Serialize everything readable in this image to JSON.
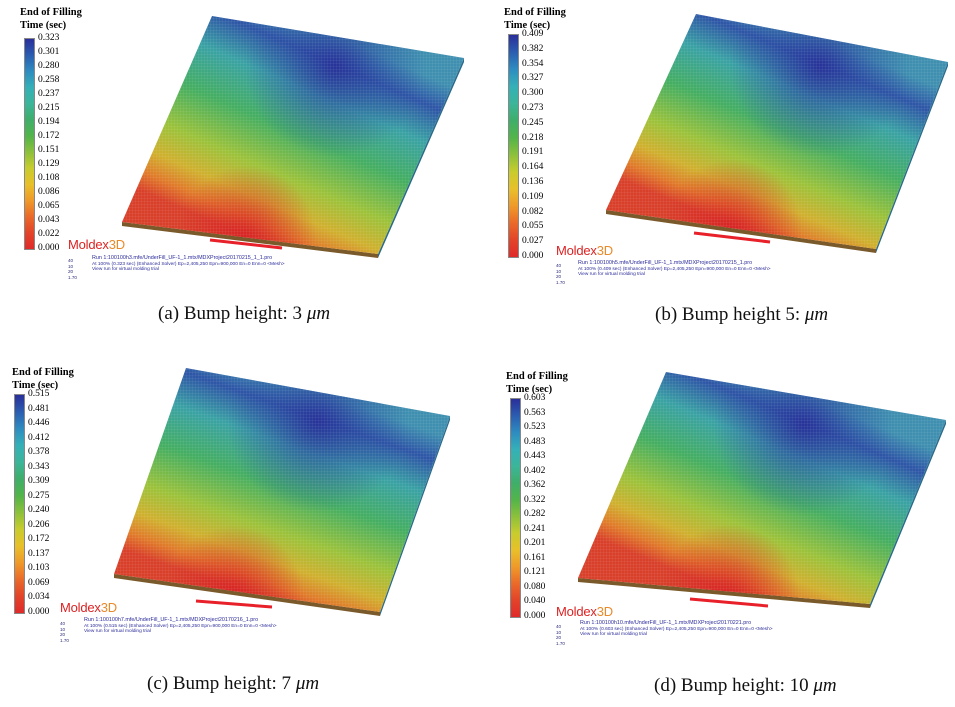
{
  "panels": [
    {
      "legend_title_1": "End of Filling",
      "legend_title_2": "Time (sec)",
      "ticks": [
        "0.323",
        "0.301",
        "0.280",
        "0.258",
        "0.237",
        "0.215",
        "0.194",
        "0.172",
        "0.151",
        "0.129",
        "0.108",
        "0.086",
        "0.065",
        "0.043",
        "0.022",
        "0.000"
      ],
      "logo_main": "Moldex",
      "logo_suffix": "3D",
      "meta_nums": [
        "40",
        "10",
        "20",
        "1.70"
      ],
      "run_line": "Run 1:100100h3.mfe/UnderFill_UF-1_1.mtx/MDXProject20170215_1_1.pro",
      "info_line": "At 100% (0.323 sec) (Enhanced Solver) Ep=2,405,250 Epn=900,000 En=0 Enn=0 <Mesh>",
      "note_line": "View run for virtual molding trial",
      "caption_prefix": "(a) Bump height: 3 ",
      "caption_unit": "μm"
    },
    {
      "legend_title_1": "End of Filling",
      "legend_title_2": "Time (sec)",
      "ticks": [
        "0.409",
        "0.382",
        "0.354",
        "0.327",
        "0.300",
        "0.273",
        "0.245",
        "0.218",
        "0.191",
        "0.164",
        "0.136",
        "0.109",
        "0.082",
        "0.055",
        "0.027",
        "0.000"
      ],
      "logo_main": "Moldex",
      "logo_suffix": "3D",
      "meta_nums": [
        "40",
        "10",
        "20",
        "1.70"
      ],
      "run_line": "Run 1:100100h5.mfe/UnderFill_UF-1_1.mtx/MDXProject20170215_1.pro",
      "info_line": "At 100% (0.409 sec) (Enhanced Solver) Ep=2,405,250 Epn=900,000 En=0 Enn=0 <Mesh>",
      "note_line": "View run for virtual molding trial",
      "caption_prefix": "(b) Bump height 5: ",
      "caption_unit": "μm"
    },
    {
      "legend_title_1": "End of Filling",
      "legend_title_2": "Time (sec)",
      "ticks": [
        "0.515",
        "0.481",
        "0.446",
        "0.412",
        "0.378",
        "0.343",
        "0.309",
        "0.275",
        "0.240",
        "0.206",
        "0.172",
        "0.137",
        "0.103",
        "0.069",
        "0.034",
        "0.000"
      ],
      "logo_main": "Moldex",
      "logo_suffix": "3D",
      "meta_nums": [
        "40",
        "10",
        "20",
        "1.70"
      ],
      "run_line": "Run 1:100100h7.mfe/UnderFill_UF-1_1.mtx/MDXProject20170216_1.pro",
      "info_line": "At 100% (0.515 sec) (Enhanced Solver) Ep=2,405,250 Epn=900,000 En=0 Enn=0 <Mesh>",
      "note_line": "View run for virtual molding trial",
      "caption_prefix": "(c) Bump height: 7 ",
      "caption_unit": "μm"
    },
    {
      "legend_title_1": "End of Filling",
      "legend_title_2": "Time (sec)",
      "ticks": [
        "0.603",
        "0.563",
        "0.523",
        "0.483",
        "0.443",
        "0.402",
        "0.362",
        "0.322",
        "0.282",
        "0.241",
        "0.201",
        "0.161",
        "0.121",
        "0.080",
        "0.040",
        "0.000"
      ],
      "logo_main": "Moldex",
      "logo_suffix": "3D",
      "meta_nums": [
        "40",
        "10",
        "20",
        "1.70"
      ],
      "run_line": "Run 1:100100h10.mfe/UnderFill_UF-1_1.mtx/MDXProject20170221.pro",
      "info_line": "At 100% (0.603 sec) (Enhanced Solver) Ep=2,405,250 Epn=900,000 En=0 Enn=0 <Mesh>",
      "note_line": "View run for virtual molding trial",
      "caption_prefix": "(d) Bump height: 10 ",
      "caption_unit": "μm"
    }
  ],
  "colors": {
    "scale": [
      "#2a2f9a",
      "#2b5db0",
      "#2e8cc0",
      "#35b0b8",
      "#3cb59a",
      "#3fae6a",
      "#52b44a",
      "#8cc03c",
      "#c8cc2e",
      "#e8c02a",
      "#ef9a2a",
      "#ea6a2a",
      "#e2442a",
      "#e02a2a"
    ],
    "bump": "#e8202a",
    "logo": "#dd2222"
  }
}
